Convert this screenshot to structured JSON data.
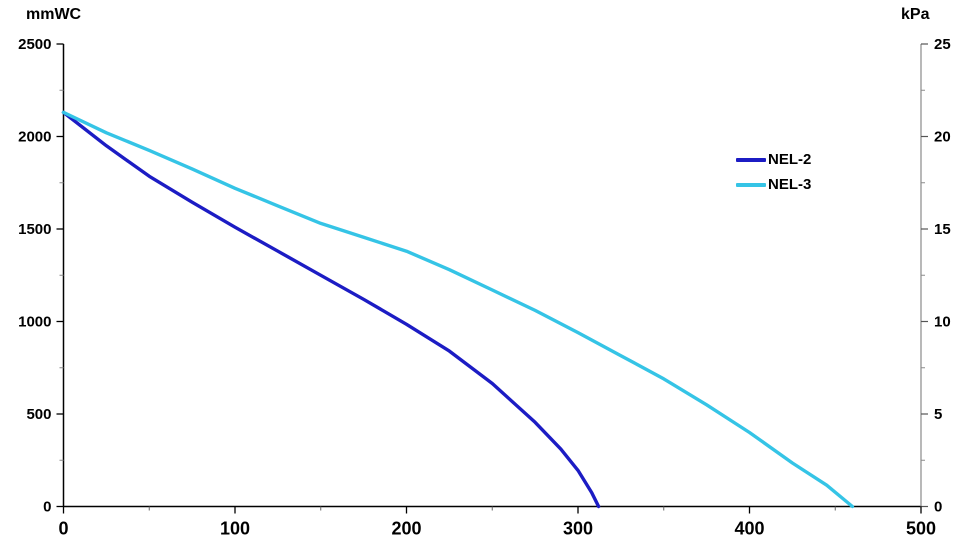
{
  "chart_data": {
    "type": "line",
    "title": "",
    "grid": false,
    "legend_position": "inside-right-upper",
    "x_axis": {
      "label": "",
      "min": 0,
      "max": 500,
      "major_step": 100,
      "minor_step": 50,
      "ticks": [
        0,
        100,
        200,
        300,
        400,
        500
      ]
    },
    "left_axis": {
      "label": "mmWC",
      "min": 0,
      "max": 2500,
      "major_step": 500,
      "minor_step": 250,
      "ticks": [
        0,
        500,
        1000,
        1500,
        2000,
        2500
      ]
    },
    "right_axis": {
      "label": "kPa",
      "min": 0,
      "max": 25,
      "major_step": 5,
      "minor_step": 2.5,
      "ticks": [
        0,
        5,
        10,
        15,
        20,
        25
      ]
    },
    "series": [
      {
        "name": "NEL-2",
        "color": "#1c1cc4",
        "points": [
          [
            0,
            2130
          ],
          [
            25,
            1950
          ],
          [
            50,
            1785
          ],
          [
            75,
            1645
          ],
          [
            100,
            1510
          ],
          [
            125,
            1380
          ],
          [
            150,
            1250
          ],
          [
            175,
            1120
          ],
          [
            200,
            985
          ],
          [
            225,
            840
          ],
          [
            250,
            665
          ],
          [
            275,
            455
          ],
          [
            290,
            310
          ],
          [
            300,
            195
          ],
          [
            308,
            75
          ],
          [
            312,
            0
          ]
        ]
      },
      {
        "name": "NEL-3",
        "color": "#35c4e6",
        "points": [
          [
            0,
            2130
          ],
          [
            25,
            2020
          ],
          [
            50,
            1925
          ],
          [
            75,
            1825
          ],
          [
            100,
            1720
          ],
          [
            125,
            1625
          ],
          [
            150,
            1530
          ],
          [
            175,
            1455
          ],
          [
            200,
            1380
          ],
          [
            225,
            1280
          ],
          [
            250,
            1170
          ],
          [
            275,
            1060
          ],
          [
            300,
            940
          ],
          [
            325,
            815
          ],
          [
            350,
            690
          ],
          [
            375,
            550
          ],
          [
            400,
            400
          ],
          [
            425,
            235
          ],
          [
            445,
            115
          ],
          [
            460,
            0
          ]
        ]
      }
    ],
    "axis_colors": {
      "left_axis_line": "#000000",
      "bottom_axis_line": "#000000",
      "right_axis_line": "#8a8a8a",
      "minor_tick": "#8a8a8a",
      "major_tick": "#000000"
    }
  }
}
